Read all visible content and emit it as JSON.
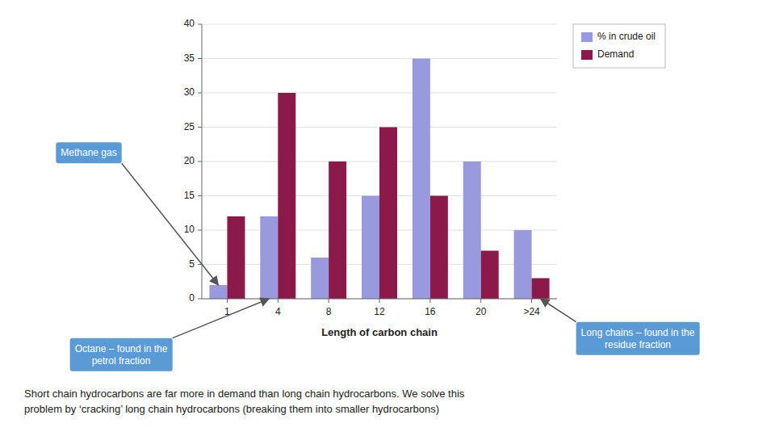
{
  "chart_data": {
    "type": "bar",
    "categories": [
      "1",
      "4",
      "8",
      "12",
      "16",
      "20",
      ">24"
    ],
    "series": [
      {
        "name": "% in crude oil",
        "color": "#9999dd",
        "values": [
          2,
          12,
          6,
          15,
          35,
          20,
          10
        ]
      },
      {
        "name": "Demand",
        "color": "#8b1a4a",
        "values": [
          12,
          30,
          20,
          25,
          15,
          7,
          3
        ]
      }
    ],
    "xlabel": "Length of carbon chain",
    "ylim": [
      0,
      40
    ],
    "yticks": [
      0,
      5,
      10,
      15,
      20,
      25,
      30,
      35,
      40
    ],
    "grid": true,
    "legend": "right",
    "annotations": [
      "Methane gas",
      "Octane – found in the\npetrol fraction",
      "Long chains – found in the\nresidue fraction"
    ],
    "caption": "Short chain hydrocarbons are far more in demand than long chain hydrocarbons. We solve this\nproblem by ‘cracking’ long chain hydrocarbons (breaking them into smaller hydrocarbons)"
  }
}
